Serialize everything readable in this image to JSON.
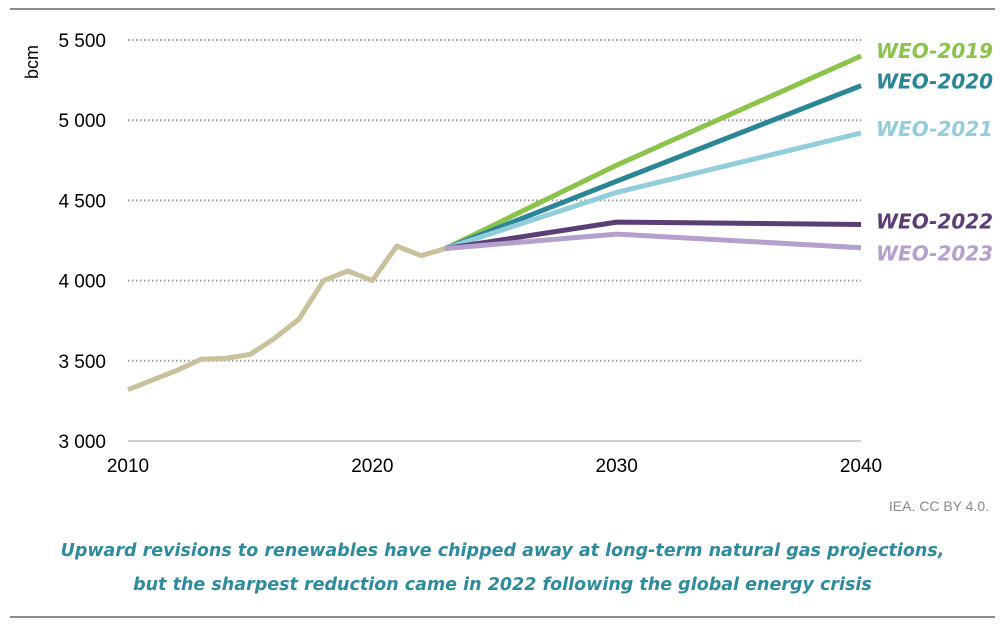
{
  "chart_data": {
    "type": "line",
    "ylabel": "bcm",
    "xlim": [
      2010,
      2040
    ],
    "ylim": [
      3000,
      5500
    ],
    "x_ticks": [
      2010,
      2020,
      2030,
      2040
    ],
    "x_tick_labels": [
      "2010",
      "2020",
      "2030",
      "2040"
    ],
    "y_ticks": [
      3000,
      3500,
      4000,
      4500,
      5000,
      5500
    ],
    "y_tick_labels": [
      "3 000",
      "3 500",
      "4 000",
      "4 500",
      "5 000",
      "5 500"
    ],
    "grid": "horizontal dotted",
    "legend": "direct labels at line ends (right)",
    "series": [
      {
        "name": "",
        "color": "#c9c19c",
        "x": [
          2010,
          2011,
          2012,
          2013,
          2014,
          2015,
          2016,
          2017,
          2018,
          2019,
          2020,
          2021,
          2022,
          2023
        ],
        "y": [
          3320,
          3380,
          3440,
          3510,
          3515,
          3540,
          3640,
          3760,
          4000,
          4060,
          4000,
          4215,
          4155,
          4200
        ]
      },
      {
        "name": "WEO-2019",
        "color": "#8cc34a",
        "x": [
          2023,
          2030,
          2040
        ],
        "y": [
          4200,
          4720,
          5400
        ]
      },
      {
        "name": "WEO-2020",
        "color": "#2a8597",
        "x": [
          2023,
          2030,
          2040
        ],
        "y": [
          4200,
          4620,
          5215
        ]
      },
      {
        "name": "WEO-2021",
        "color": "#92cddc",
        "x": [
          2023,
          2030,
          2040
        ],
        "y": [
          4200,
          4550,
          4920
        ]
      },
      {
        "name": "WEO-2022",
        "color": "#5a3e75",
        "x": [
          2023,
          2030,
          2040
        ],
        "y": [
          4200,
          4365,
          4350
        ]
      },
      {
        "name": "WEO-2023",
        "color": "#b3a0cc",
        "x": [
          2023,
          2030,
          2040
        ],
        "y": [
          4200,
          4290,
          4205
        ]
      }
    ]
  },
  "credit": "IEA. CC BY 4.0.",
  "caption": {
    "line1": "Upward revisions to renewables have chipped away at long-term natural gas projections,",
    "line2": "but the sharpest reduction came in 2022 following the global energy crisis"
  }
}
